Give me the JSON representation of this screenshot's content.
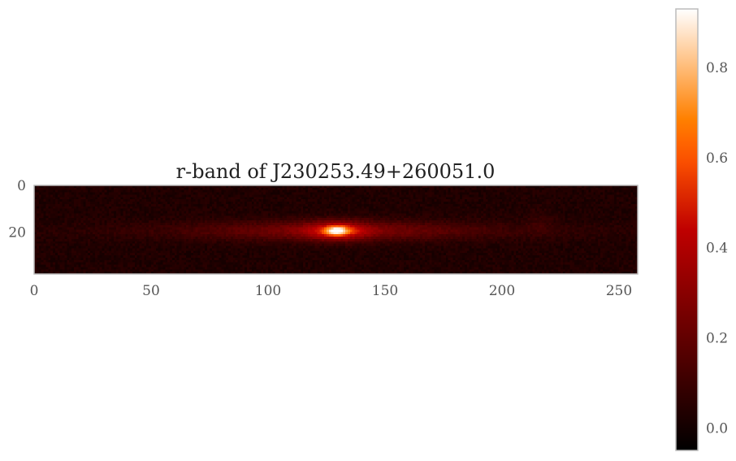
{
  "chart_data": {
    "type": "heatmap",
    "title": "r-band of J230253.49+260051.0",
    "colormap": "gist_heat",
    "image_shape": [
      38,
      258
    ],
    "xlim": [
      0,
      258
    ],
    "ylim": [
      38,
      0
    ],
    "xticks": [
      0,
      50,
      100,
      150,
      200,
      250
    ],
    "xtick_labels": [
      "0",
      "50",
      "100",
      "150",
      "200",
      "250"
    ],
    "yticks": [
      0,
      20
    ],
    "ytick_labels": [
      "0",
      "20"
    ],
    "colorbar": {
      "range": [
        -0.05,
        0.93
      ],
      "ticks": [
        0.0,
        0.2,
        0.4,
        0.6,
        0.8
      ],
      "tick_labels": [
        "0.0",
        "0.2",
        "0.4",
        "0.6",
        "0.8"
      ]
    },
    "features": {
      "core_center": [
        129,
        19
      ],
      "core_peak_value": 0.93,
      "disk_extent_x": [
        75,
        220
      ],
      "disk_angle": "near-horizontal",
      "background_level": 0.05
    },
    "grid": false,
    "legend": "none"
  }
}
